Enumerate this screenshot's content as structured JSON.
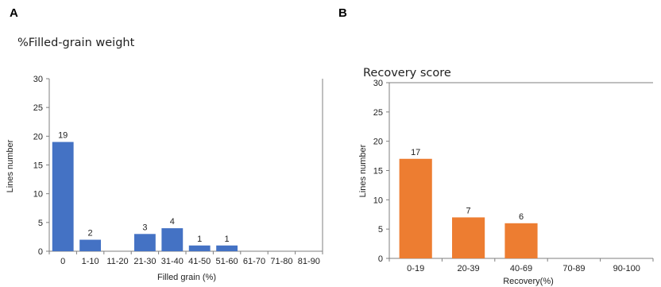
{
  "panels": {
    "a_letter": "A",
    "b_letter": "B"
  },
  "colors": {
    "blue": "#4472C4",
    "orange": "#ED7D31",
    "axis": "#7f7f7f"
  },
  "chart_data": [
    {
      "type": "bar",
      "title": "%Filled-grain weight",
      "xlabel": "Filled grain (%)",
      "ylabel": "Lines number",
      "categories": [
        "0",
        "1-10",
        "11-20",
        "21-30",
        "31-40",
        "41-50",
        "51-60",
        "61-70",
        "71-80",
        "81-90"
      ],
      "values": [
        19,
        2,
        0,
        3,
        4,
        1,
        1,
        0,
        0,
        0
      ],
      "data_labels": [
        "19",
        "2",
        "",
        "3",
        "4",
        "1",
        "1",
        "",
        "",
        ""
      ],
      "ylim": [
        0,
        30
      ],
      "yticks": [
        0,
        5,
        10,
        15,
        20,
        25,
        30
      ],
      "grid": false,
      "color": "#4472C4"
    },
    {
      "type": "bar",
      "title": "Recovery score",
      "xlabel": "Recovery(%)",
      "ylabel": "Lines number",
      "categories": [
        "0-19",
        "20-39",
        "40-69",
        "70-89",
        "90-100"
      ],
      "values": [
        17,
        7,
        6,
        0,
        0
      ],
      "data_labels": [
        "17",
        "7",
        "6",
        "",
        ""
      ],
      "ylim": [
        0,
        30
      ],
      "yticks": [
        0,
        5,
        10,
        15,
        20,
        25,
        30
      ],
      "grid": false,
      "color": "#ED7D31"
    }
  ]
}
